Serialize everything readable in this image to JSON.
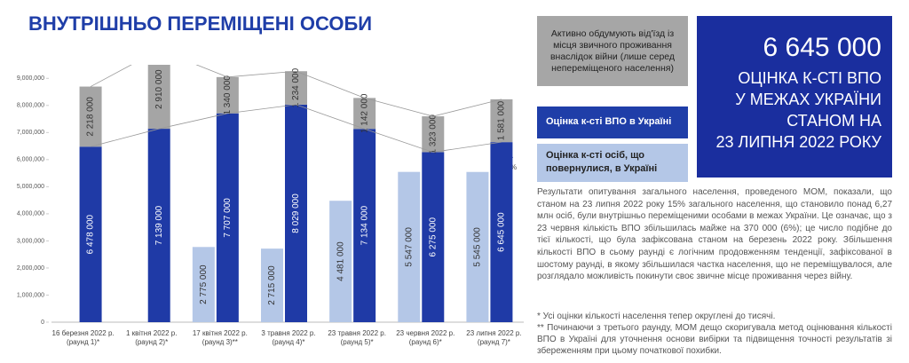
{
  "chart_data": {
    "type": "bar",
    "title": "ВНУТРІШНЬО ПЕРЕМІЩЕНІ ОСОБИ",
    "categories": [
      "16 березня 2022 р.\n(раунд 1)*",
      "1 квітня 2022 р.\n(раунд 2)*",
      "17 квітня 2022 р.\n(раунд 3)**",
      "3 травня 2022 р.\n(раунд 4)*",
      "23 травня 2022 р.\n(раунд 5)*",
      "23 червня 2022 р.\n(раунд 6)*",
      "23 липня 2022 р.\n(раунд 7)*"
    ],
    "series": [
      {
        "name": "Оцінка к-сті ВПО в Україні",
        "color": "#1f3aa6",
        "values": [
          6478000,
          7139000,
          7707000,
          8029000,
          7134000,
          6275000,
          6645000
        ],
        "value_labels": [
          "6 478 000",
          "7 139 000",
          "7 707 000",
          "8 029 000",
          "7 134 000",
          "6 275 000",
          "6 645 000"
        ]
      },
      {
        "name": "Активно обдумують від'їзд із місця звичного проживання внаслідок війни (лише серед непереміщеного населення)",
        "color": "#a5a5a5",
        "values": [
          2218000,
          2910000,
          1340000,
          1234000,
          1142000,
          1323000,
          1581000
        ],
        "value_labels": [
          "2 218 000",
          "2 910 000",
          "1 340 000",
          "1 234 000",
          "1 142 000",
          "1 323 000",
          "1 581 000"
        ]
      },
      {
        "name": "Оцінка к-сті осіб, що повернулися, в Україні",
        "color": "#b4c7e7",
        "values": [
          null,
          null,
          2775000,
          2715000,
          4481000,
          5547000,
          5545000
        ],
        "value_labels": [
          null,
          null,
          "2 775 000",
          "2 715 000",
          "4 481 000",
          "5 547 000",
          "5 545 000"
        ]
      }
    ],
    "ylim": [
      0,
      9500000
    ],
    "yticks": [
      0,
      {
        "value": 1000000,
        "label": "1,000,000"
      },
      {
        "value": 2000000,
        "label": "2,000,000"
      },
      {
        "value": 3000000,
        "label": "3,000,000"
      },
      {
        "value": 4000000,
        "label": "4,000,000"
      },
      {
        "value": 5000000,
        "label": "5,000,000"
      },
      {
        "value": 6000000,
        "label": "6,000,000"
      },
      {
        "value": 7000000,
        "label": "7,000,000"
      },
      {
        "value": 8000000,
        "label": "8,000,000"
      },
      {
        "value": 9000000,
        "label": "9,000,000"
      }
    ],
    "grid": false,
    "annotation": "+6%"
  },
  "highlight": {
    "value": "6 645 000",
    "label": "ОЦІНКА К-СТІ ВПО\nУ МЕЖАХ УКРАЇНИ\nСТАНОМ НА\n23 ЛИПНЯ 2022 РОКУ"
  },
  "description": "Результати опитування загального населення, проведеного МОМ, показали, що станом на 23 липня 2022 року 15% загального населення, що становило понад 6,27 млн осіб, були внутрішньо переміщеними особами в межах України. Це означає, що з 23 червня кількість ВПО збільшилась майже на 370 000 (6%); це число подібне до тієї кількості, що була зафіксована станом на березень 2022 року. Збільшення кількості ВПО в сьому раунді є логічним продовженням тенденції, зафіксованої в шостому раунді, в якому збільшилася частка населення, що не переміщувалося, але розглядало можливість покинути своє звичне місце проживання через війну.",
  "footnotes": [
    "* Усі оцінки кількості населення тепер округлені до тисячі.",
    "** Починаючи з третього раунду, МОМ дещо скоригувала метод оцінювання кількості ВПО в Україні для уточнення основи вибірки та підвищення точності результатів зі збереженням при цьому початкової похибки."
  ]
}
